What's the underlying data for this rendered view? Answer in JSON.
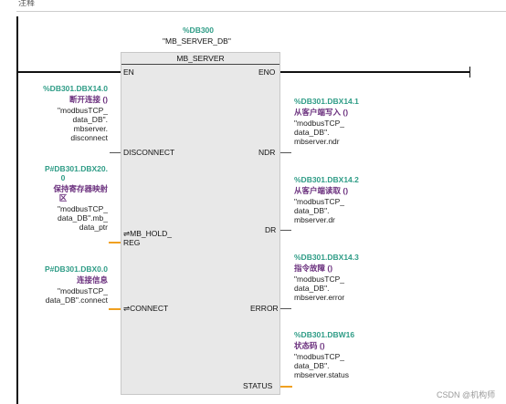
{
  "top_label": "注释",
  "db": {
    "address": "%DB300",
    "name": "\"MB_SERVER_DB\""
  },
  "block": {
    "title": "MB_SERVER",
    "pins": {
      "en": "EN",
      "eno": "ENO",
      "disconnect": "DISCONNECT",
      "ndr": "NDR",
      "mb_hold_1": "⇌MB_HOLD_",
      "mb_hold_2": "REG",
      "dr": "DR",
      "connect": "⇌CONNECT",
      "error": "ERROR",
      "status": "STATUS"
    }
  },
  "inputs": {
    "disconnect": {
      "address": "%DB301.DBX14.0",
      "comment": "断开连接 ()",
      "sym1": "\"modbusTCP_",
      "sym2": "data_DB\".",
      "sym3": "mbserver.",
      "sym4": "disconnect"
    },
    "mb_hold": {
      "address1": "P#DB301.DBX20.",
      "address2": "0",
      "comment1": "保持寄存器映射",
      "comment2": "区",
      "sym1": "\"modbusTCP_",
      "sym2": "data_DB\".mb_",
      "sym3": "data_ptr"
    },
    "connect": {
      "address": "P#DB301.DBX0.0",
      "comment": "连接信息",
      "sym1": "\"modbusTCP_",
      "sym2": "data_DB\".connect"
    }
  },
  "outputs": {
    "ndr": {
      "address": "%DB301.DBX14.1",
      "comment": "从客户端写入 ()",
      "sym1": "\"modbusTCP_",
      "sym2": "data_DB\".",
      "sym3": "mbserver.ndr"
    },
    "dr": {
      "address": "%DB301.DBX14.2",
      "comment": "从客户端读取 ()",
      "sym1": "\"modbusTCP_",
      "sym2": "data_DB\".",
      "sym3": "mbserver.dr"
    },
    "error": {
      "address": "%DB301.DBX14.3",
      "comment": "指令故障 ()",
      "sym1": "\"modbusTCP_",
      "sym2": "data_DB\".",
      "sym3": "mbserver.error"
    },
    "status": {
      "address": "%DB301.DBW16",
      "comment": "状态码 ()",
      "sym1": "\"modbusTCP_",
      "sym2": "data_DB\".",
      "sym3": "mbserver.status"
    }
  },
  "watermark": "CSDN @机构师"
}
